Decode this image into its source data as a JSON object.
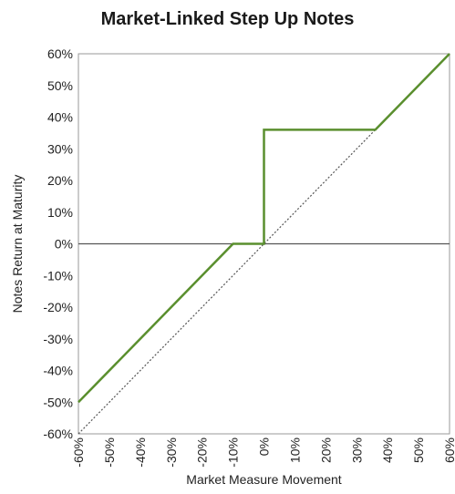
{
  "chart_data": {
    "type": "line",
    "title": "Market-Linked Step Up Notes",
    "xlabel": "Market Measure Movement",
    "ylabel": "Notes Return at Maturity",
    "xlim": [
      -60,
      60
    ],
    "ylim": [
      -60,
      60
    ],
    "x_ticks": [
      "-60%",
      "-50%",
      "-40%",
      "-30%",
      "-20%",
      "-10%",
      "0%",
      "10%",
      "20%",
      "30%",
      "40%",
      "50%",
      "60%"
    ],
    "y_ticks": [
      "60%",
      "50%",
      "40%",
      "30%",
      "20%",
      "10%",
      "0%",
      "-10%",
      "-20%",
      "-30%",
      "-40%",
      "-50%",
      "-60%"
    ],
    "grid": false,
    "series": [
      {
        "style": "solid",
        "color": "#5a8f2e",
        "x": [
          -60,
          -10,
          0,
          0,
          36,
          60
        ],
        "y": [
          -50,
          0,
          0,
          36,
          36,
          60
        ]
      },
      {
        "style": "dotted",
        "color": "#555555",
        "x": [
          -60,
          60
        ],
        "y": [
          -60,
          60
        ]
      }
    ],
    "reference_lines": [
      {
        "axis": "y",
        "value": 0,
        "color": "#555555"
      }
    ]
  }
}
